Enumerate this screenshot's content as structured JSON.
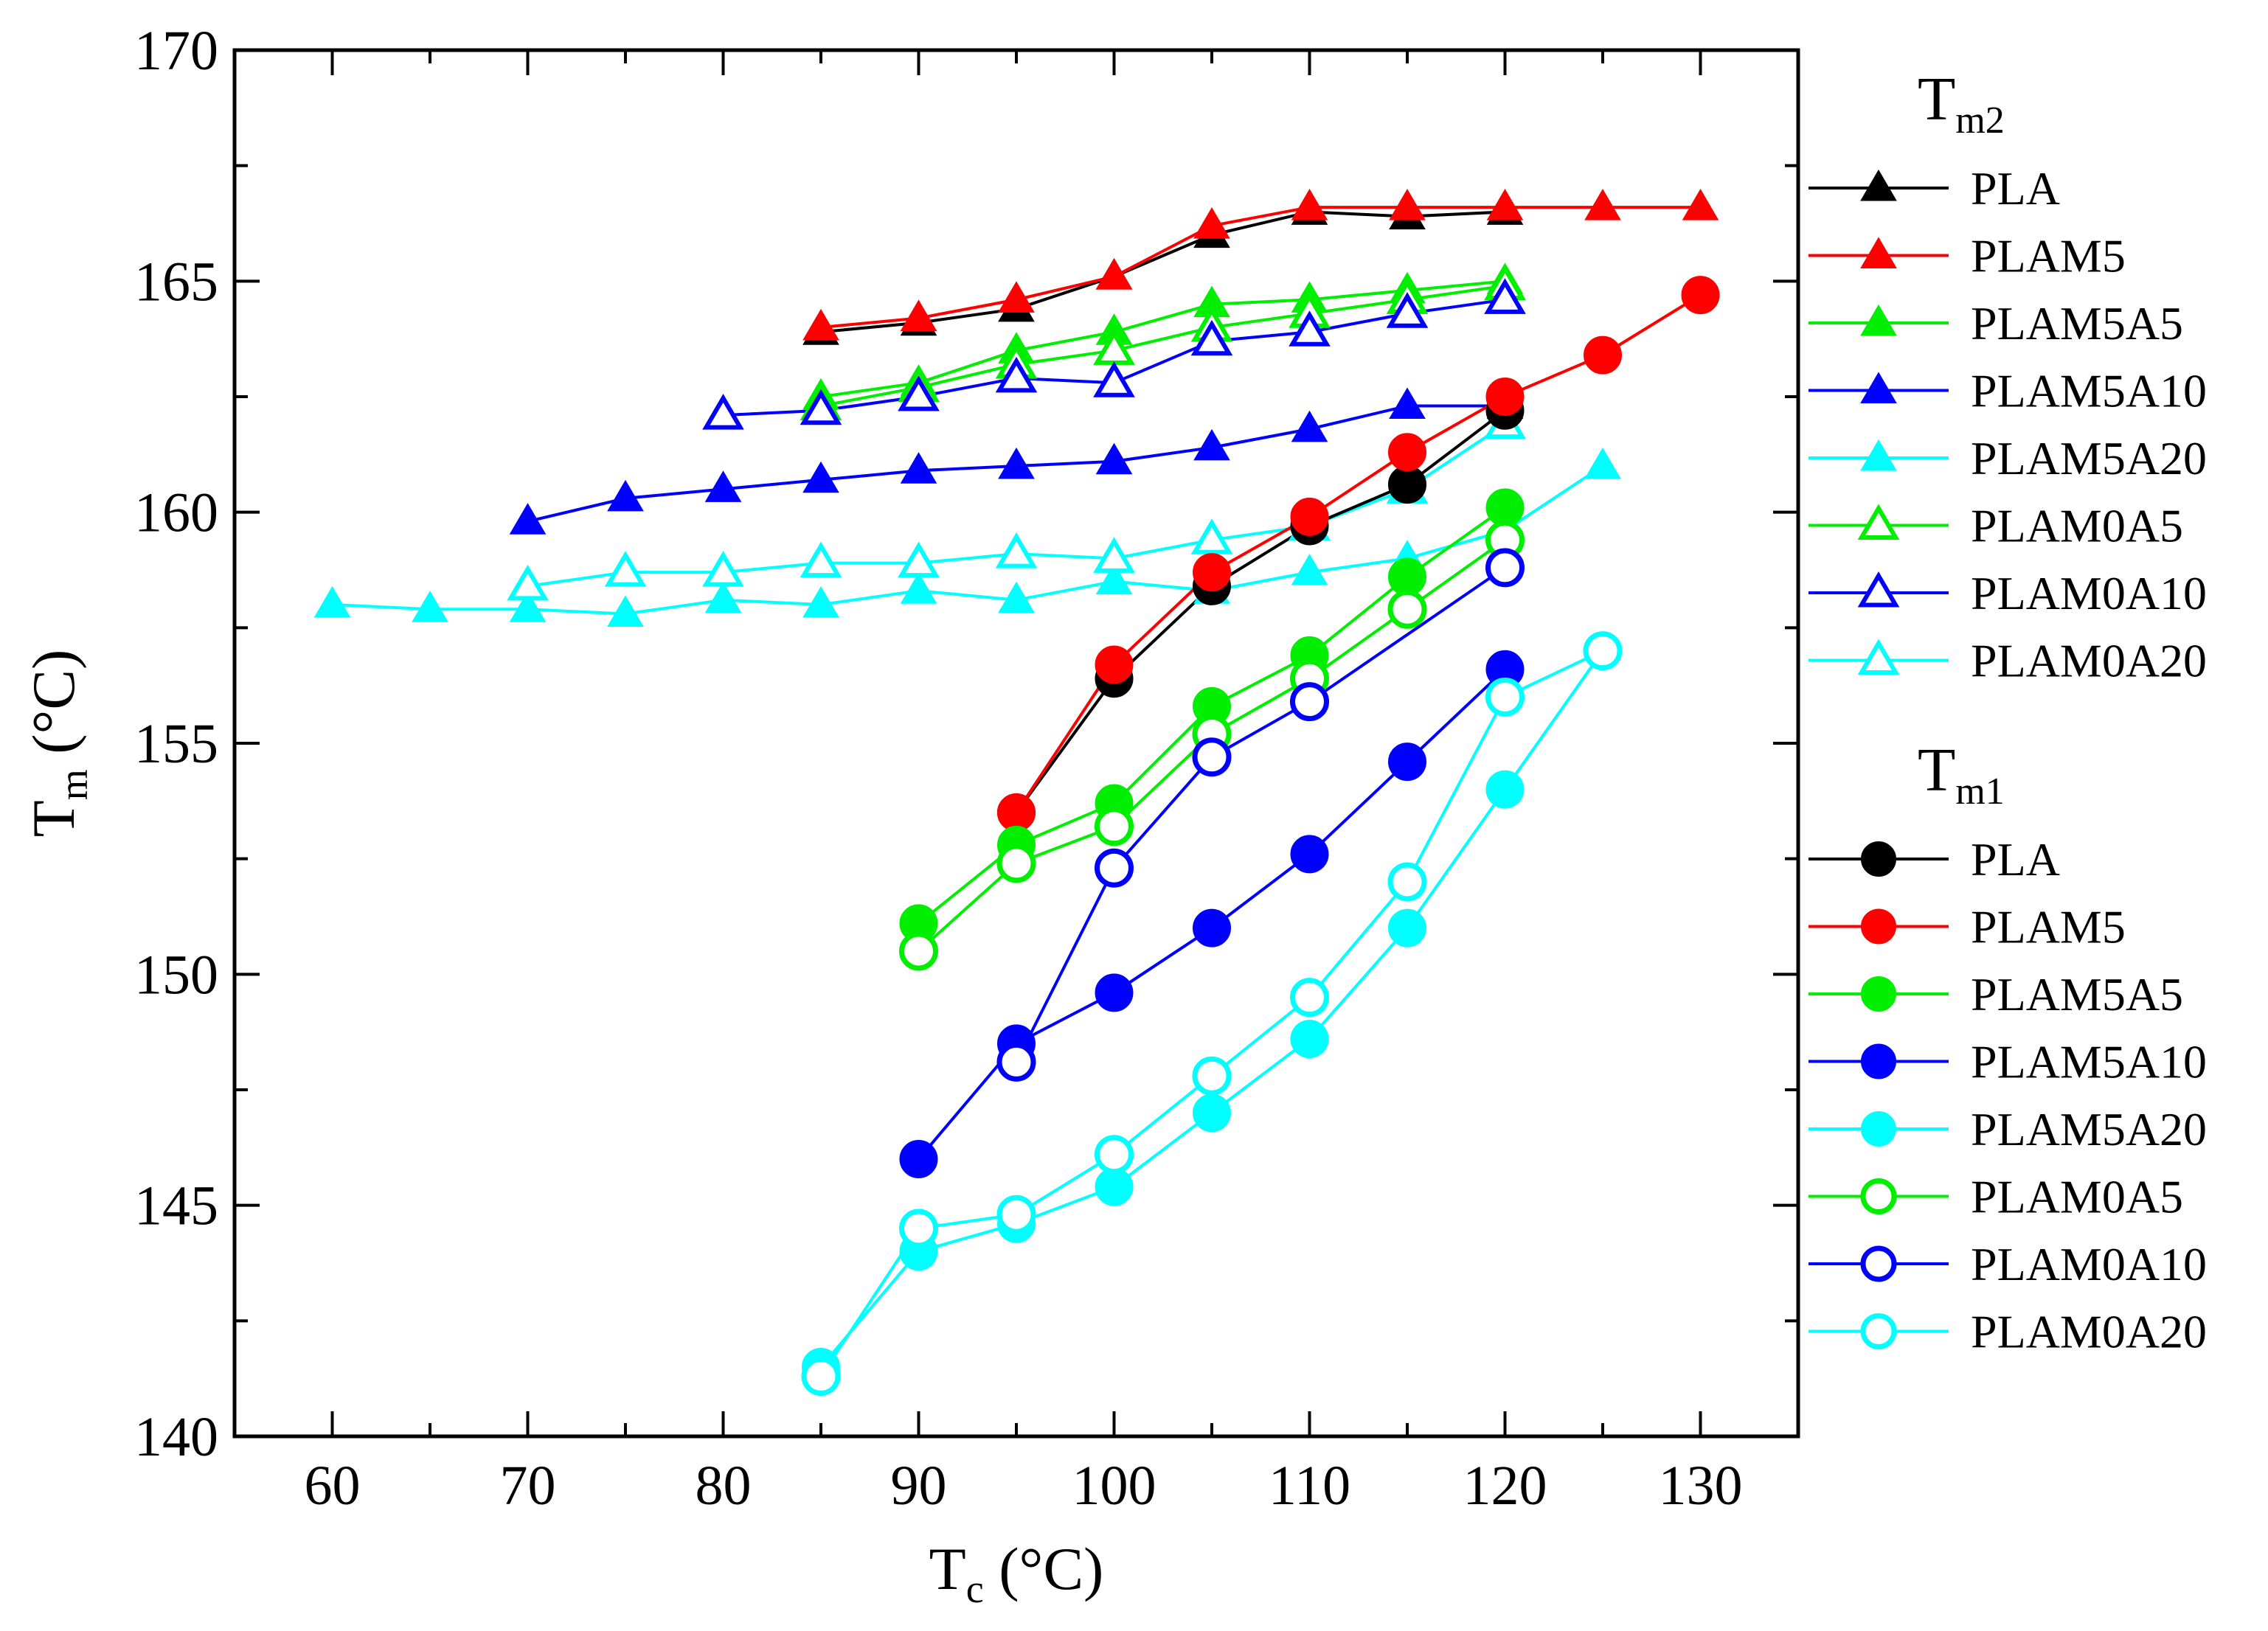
{
  "chart_data": {
    "type": "line",
    "title": "",
    "xlabel": {
      "main": "T",
      "sub": "c",
      "unit": " (°C)"
    },
    "ylabel": {
      "main": "T",
      "sub": "m",
      "unit": " (°C)"
    },
    "xlim": [
      55,
      135
    ],
    "ylim": [
      140,
      170
    ],
    "x_major_ticks": [
      60,
      70,
      80,
      90,
      100,
      110,
      120,
      130
    ],
    "x_tick_labels": [
      "60",
      "70",
      "80",
      "90",
      "100",
      "110",
      "120",
      "130"
    ],
    "y_major_ticks": [
      140,
      145,
      150,
      155,
      160,
      165,
      170
    ],
    "y_tick_labels": [
      "140",
      "145",
      "150",
      "155",
      "160",
      "165",
      "170"
    ],
    "legend_groups": [
      {
        "key": "tm2",
        "title_main": "T",
        "title_sub": "m2",
        "marker": "triangle"
      },
      {
        "key": "tm1",
        "title_main": "T",
        "title_sub": "m1",
        "marker": "circle"
      }
    ],
    "legend_position": "right, outside plot",
    "series": [
      {
        "group": "tm2",
        "name": "PLA",
        "color": "#000000",
        "filled": true,
        "x": [
          85,
          90,
          95,
          100,
          105,
          110,
          115,
          120
        ],
        "y": [
          163.9,
          164.1,
          164.4,
          165.1,
          166.0,
          166.5,
          166.4,
          166.5
        ]
      },
      {
        "group": "tm2",
        "name": "PLAM5",
        "color": "#ff0000",
        "filled": true,
        "x": [
          85,
          90,
          95,
          100,
          105,
          110,
          115,
          120,
          125,
          130
        ],
        "y": [
          164.0,
          164.2,
          164.6,
          165.1,
          166.2,
          166.6,
          166.6,
          166.6,
          166.6,
          166.6
        ]
      },
      {
        "group": "tm2",
        "name": "PLAM5A5",
        "color": "#00ee00",
        "filled": true,
        "x": [
          85,
          90,
          95,
          100,
          105,
          110,
          115,
          120
        ],
        "y": [
          162.5,
          162.8,
          163.5,
          163.9,
          164.5,
          164.6,
          164.8,
          165.0
        ]
      },
      {
        "group": "tm2",
        "name": "PLAM5A10",
        "color": "#0000ff",
        "filled": true,
        "x": [
          70,
          75,
          80,
          85,
          90,
          95,
          100,
          105,
          110,
          115,
          120
        ],
        "y": [
          159.8,
          160.3,
          160.5,
          160.7,
          160.9,
          161.0,
          161.1,
          161.4,
          161.8,
          162.3,
          162.3
        ]
      },
      {
        "group": "tm2",
        "name": "PLAM5A20",
        "color": "#00ffff",
        "filled": true,
        "x": [
          60,
          65,
          70,
          75,
          80,
          85,
          90,
          95,
          100,
          105,
          110,
          115,
          120,
          125
        ],
        "y": [
          158.0,
          157.9,
          157.9,
          157.8,
          158.1,
          158.0,
          158.3,
          158.1,
          158.5,
          158.3,
          158.7,
          159.0,
          159.6,
          161.0
        ]
      },
      {
        "group": "tm2",
        "name": "PLAM0A5",
        "color": "#00ee00",
        "filled": false,
        "x": [
          85,
          90,
          95,
          100,
          105,
          110,
          115,
          120
        ],
        "y": [
          162.3,
          162.7,
          163.2,
          163.5,
          164.0,
          164.3,
          164.6,
          164.9
        ]
      },
      {
        "group": "tm2",
        "name": "PLAM0A10",
        "color": "#0000ff",
        "filled": false,
        "x": [
          80,
          85,
          90,
          95,
          100,
          105,
          110,
          115,
          120
        ],
        "y": [
          162.1,
          162.2,
          162.5,
          162.9,
          162.8,
          163.7,
          163.9,
          164.3,
          164.6
        ]
      },
      {
        "group": "tm2",
        "name": "PLAM0A20",
        "color": "#00ffff",
        "filled": false,
        "x": [
          70,
          75,
          80,
          85,
          90,
          95,
          100,
          105,
          110,
          115,
          120
        ],
        "y": [
          158.4,
          158.7,
          158.7,
          158.9,
          158.9,
          159.1,
          159.0,
          159.4,
          159.7,
          160.5,
          161.9
        ]
      },
      {
        "group": "tm1",
        "name": "PLA",
        "color": "#000000",
        "filled": true,
        "x": [
          95,
          100,
          105,
          110,
          115,
          120
        ],
        "y": [
          153.5,
          156.4,
          158.4,
          159.7,
          160.6,
          162.2
        ]
      },
      {
        "group": "tm1",
        "name": "PLAM5",
        "color": "#ff0000",
        "filled": true,
        "x": [
          95,
          100,
          105,
          110,
          115,
          120,
          125,
          130
        ],
        "y": [
          153.5,
          156.7,
          158.7,
          159.9,
          161.3,
          162.5,
          163.4,
          164.7
        ]
      },
      {
        "group": "tm1",
        "name": "PLAM5A5",
        "color": "#00ee00",
        "filled": true,
        "x": [
          90,
          95,
          100,
          105,
          110,
          115,
          120
        ],
        "y": [
          151.1,
          152.8,
          153.7,
          155.8,
          156.9,
          158.6,
          160.1
        ]
      },
      {
        "group": "tm1",
        "name": "PLAM5A10",
        "color": "#0000ff",
        "filled": true,
        "x": [
          90,
          95,
          100,
          105,
          110,
          115,
          120
        ],
        "y": [
          146.0,
          148.5,
          149.6,
          151.0,
          152.6,
          154.6,
          156.6
        ]
      },
      {
        "group": "tm1",
        "name": "PLAM5A20",
        "color": "#00ffff",
        "filled": true,
        "x": [
          85,
          90,
          95,
          100,
          105,
          110,
          115,
          120,
          125
        ],
        "y": [
          141.5,
          144.0,
          144.6,
          145.4,
          147.0,
          148.6,
          151.0,
          154.0,
          157.0
        ]
      },
      {
        "group": "tm1",
        "name": "PLAM0A5",
        "color": "#00ee00",
        "filled": false,
        "x": [
          90,
          95,
          100,
          105,
          110,
          115,
          120
        ],
        "y": [
          150.5,
          152.4,
          153.2,
          155.2,
          156.4,
          157.9,
          159.4
        ]
      },
      {
        "group": "tm1",
        "name": "PLAM0A10",
        "color": "#0000ff",
        "filled": false,
        "x": [
          95,
          100,
          105,
          110,
          115,
          120
        ],
        "y": [
          148.1,
          152.3,
          154.7,
          155.9,
          null,
          158.8
        ]
      },
      {
        "group": "tm1",
        "name": "PLAM0A20",
        "color": "#00ffff",
        "filled": false,
        "x": [
          85,
          90,
          95,
          100,
          105,
          110,
          115,
          120,
          125
        ],
        "y": [
          141.3,
          144.5,
          144.8,
          146.1,
          147.8,
          149.5,
          152.0,
          156.0,
          157.0
        ]
      }
    ]
  }
}
